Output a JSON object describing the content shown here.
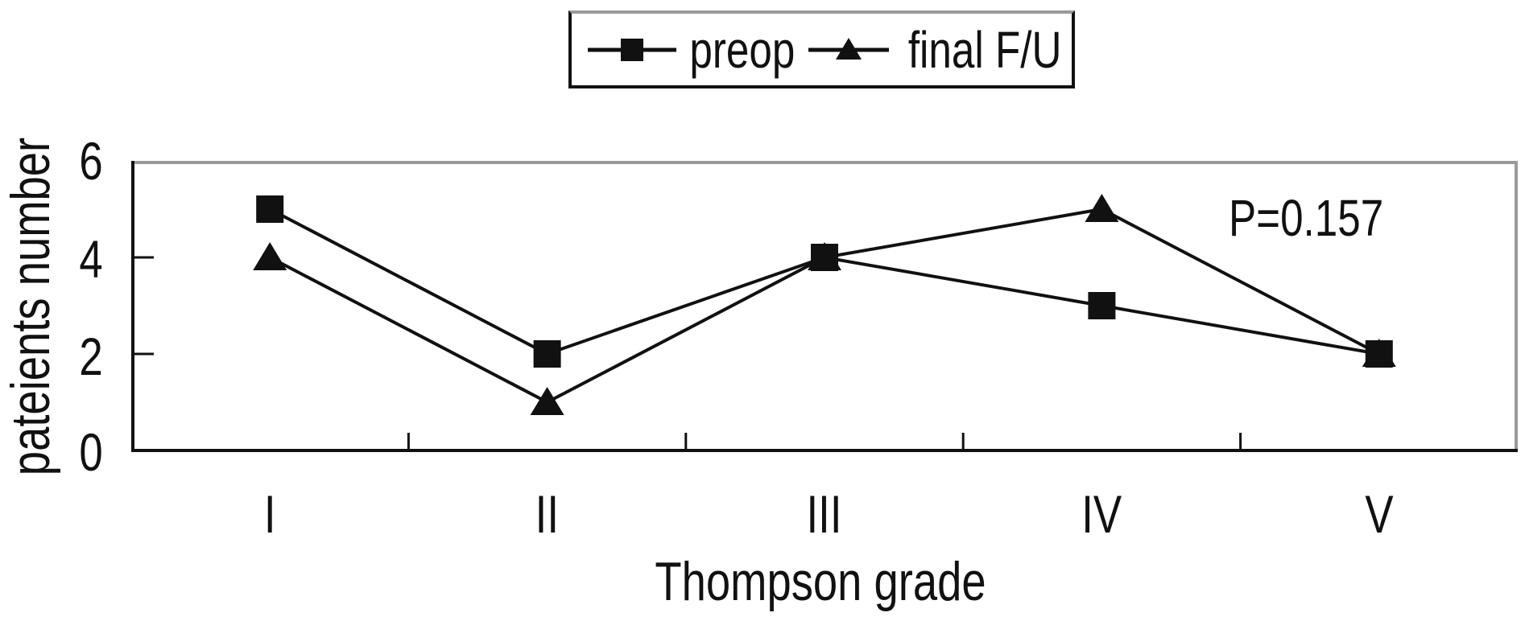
{
  "chart_data": {
    "type": "line",
    "categories": [
      "I",
      "II",
      "III",
      "IV",
      "V"
    ],
    "series": [
      {
        "name": "preop",
        "marker": "square",
        "values": [
          5,
          2,
          4,
          3,
          2
        ]
      },
      {
        "name": "final F/U",
        "marker": "triangle",
        "values": [
          4,
          1,
          4,
          5,
          2
        ]
      }
    ],
    "xlabel": "Thompson grade",
    "ylabel": "pateients number",
    "annotation": "P=0.157",
    "yticks": [
      0,
      2,
      4,
      6
    ],
    "ylim": [
      0,
      6
    ],
    "grid": false,
    "legend_position": "top-center",
    "line_color": "#111111",
    "marker_color": "#111111",
    "box_border_dark": "#111111",
    "box_border_light": "#9a9a9a",
    "background": "#ffffff"
  }
}
